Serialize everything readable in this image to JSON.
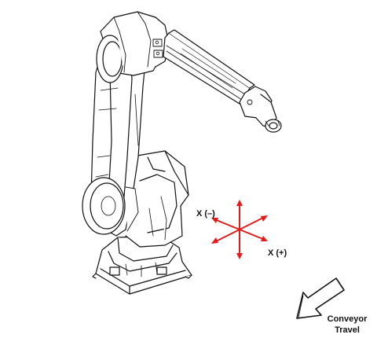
{
  "axes": {
    "x_minus": "X (–)",
    "x_plus": "X (+)"
  },
  "conveyor": {
    "line1": "Conveyor",
    "line2": "Travel"
  },
  "colors": {
    "axis": "#e31b1b",
    "ink": "#111111",
    "paper": "#ffffff"
  },
  "icons": {
    "conveyor_arrow": "arrow-down-left-icon"
  }
}
